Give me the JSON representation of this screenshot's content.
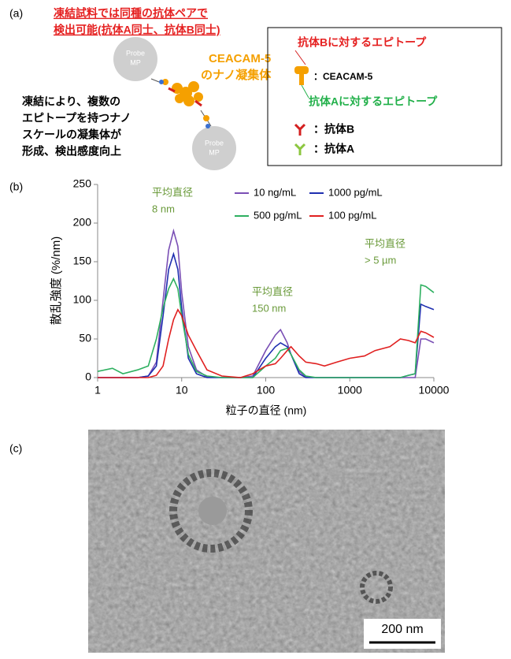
{
  "panel_a": {
    "label": "(a)",
    "headline": [
      "凍結試料では同種の抗体ペアで",
      "検出可能(抗体A同士、抗体B同士)"
    ],
    "probe": [
      "Probe",
      "MP"
    ],
    "aggregate": [
      "CEACAM-5",
      "のナノ凝集体"
    ],
    "explanation": [
      "凍結により、複数の",
      "エピトープを持つナノ",
      "スケールの凝集体が",
      "形成、検出感度向上"
    ],
    "legend": {
      "epitope_b": "抗体Bに対するエピトープ",
      "ceacam": "：CEACAM-5",
      "epitope_a": "抗体Aに対するエピトープ",
      "antibody_b": "：抗体B",
      "antibody_a": "：抗体A"
    }
  },
  "chart_data": {
    "type": "line",
    "label": "(b)",
    "x_label": "粒子の直径 (nm)",
    "y_label": "散乱強度 (%/nm)",
    "log_x": true,
    "xlim": [
      1,
      10000
    ],
    "xticks": [
      1,
      10,
      100,
      1000,
      10000
    ],
    "ylim": [
      0,
      250
    ],
    "yticks": [
      0,
      50,
      100,
      150,
      200,
      250
    ],
    "x": [
      1,
      1.5,
      2,
      3,
      4,
      5,
      6,
      7,
      8,
      9,
      10,
      12,
      15,
      20,
      30,
      50,
      70,
      100,
      130,
      150,
      180,
      200,
      250,
      300,
      400,
      500,
      700,
      1000,
      1500,
      2000,
      3000,
      4000,
      5000,
      6000,
      7000,
      8000,
      10000
    ],
    "series": [
      {
        "name": "10 ng/mL",
        "color": "#7a4fb5",
        "values": [
          0,
          0,
          0,
          0,
          2,
          20,
          100,
          165,
          190,
          170,
          110,
          40,
          10,
          1,
          0,
          0,
          2,
          35,
          55,
          62,
          45,
          30,
          8,
          1,
          0,
          0,
          0,
          0,
          0,
          0,
          0,
          0,
          0,
          0,
          50,
          50,
          45
        ]
      },
      {
        "name": "1000 pg/mL",
        "color": "#1f2fb0",
        "values": [
          0,
          0,
          0,
          0,
          2,
          15,
          80,
          140,
          160,
          140,
          90,
          25,
          5,
          0,
          0,
          0,
          0,
          25,
          40,
          45,
          40,
          30,
          5,
          0,
          0,
          0,
          0,
          0,
          0,
          0,
          0,
          0,
          3,
          5,
          95,
          92,
          88
        ]
      },
      {
        "name": "500 pg/mL",
        "color": "#2eb060",
        "values": [
          8,
          12,
          5,
          10,
          15,
          50,
          90,
          115,
          128,
          115,
          80,
          30,
          8,
          2,
          0,
          0,
          0,
          15,
          25,
          35,
          38,
          30,
          10,
          2,
          0,
          0,
          0,
          0,
          0,
          0,
          0,
          0,
          3,
          5,
          120,
          118,
          110
        ]
      },
      {
        "name": "100 pg/mL",
        "color": "#e02020",
        "values": [
          0,
          0,
          0,
          0,
          0,
          3,
          15,
          50,
          75,
          88,
          80,
          55,
          35,
          10,
          2,
          0,
          5,
          15,
          18,
          25,
          35,
          40,
          28,
          20,
          18,
          15,
          20,
          25,
          28,
          35,
          40,
          50,
          48,
          45,
          60,
          58,
          52
        ]
      }
    ],
    "annotations": [
      {
        "lines": [
          "平均直径",
          "8 nm"
        ]
      },
      {
        "lines": [
          "平均直径",
          "150 nm"
        ]
      },
      {
        "lines": [
          "平均直径",
          "> 5 µm"
        ]
      }
    ]
  },
  "panel_c": {
    "label": "(c)",
    "scale_bar": "200 nm"
  }
}
